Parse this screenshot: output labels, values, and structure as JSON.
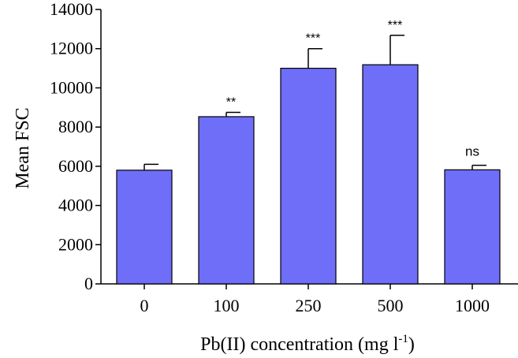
{
  "chart_data": {
    "type": "bar",
    "title": "",
    "xlabel": "Pb(II) concentration (mg l",
    "xlabel_superscript": "-1",
    "xlabel_suffix": ")",
    "ylabel": "Mean FSC",
    "ylim": [
      0,
      14000
    ],
    "yticks": [
      "0",
      "2000",
      "4000",
      "6000",
      "8000",
      "10000",
      "12000",
      "14000"
    ],
    "categories": [
      "0",
      "100",
      "250",
      "500",
      "1000"
    ],
    "values": [
      5800,
      8530,
      11000,
      11180,
      5820
    ],
    "errors": [
      300,
      220,
      1000,
      1500,
      230
    ],
    "significance": [
      "",
      "**",
      "***",
      "***",
      "ns"
    ],
    "colors": {
      "bar": "#6e6ef8",
      "outline": "#000000"
    }
  }
}
